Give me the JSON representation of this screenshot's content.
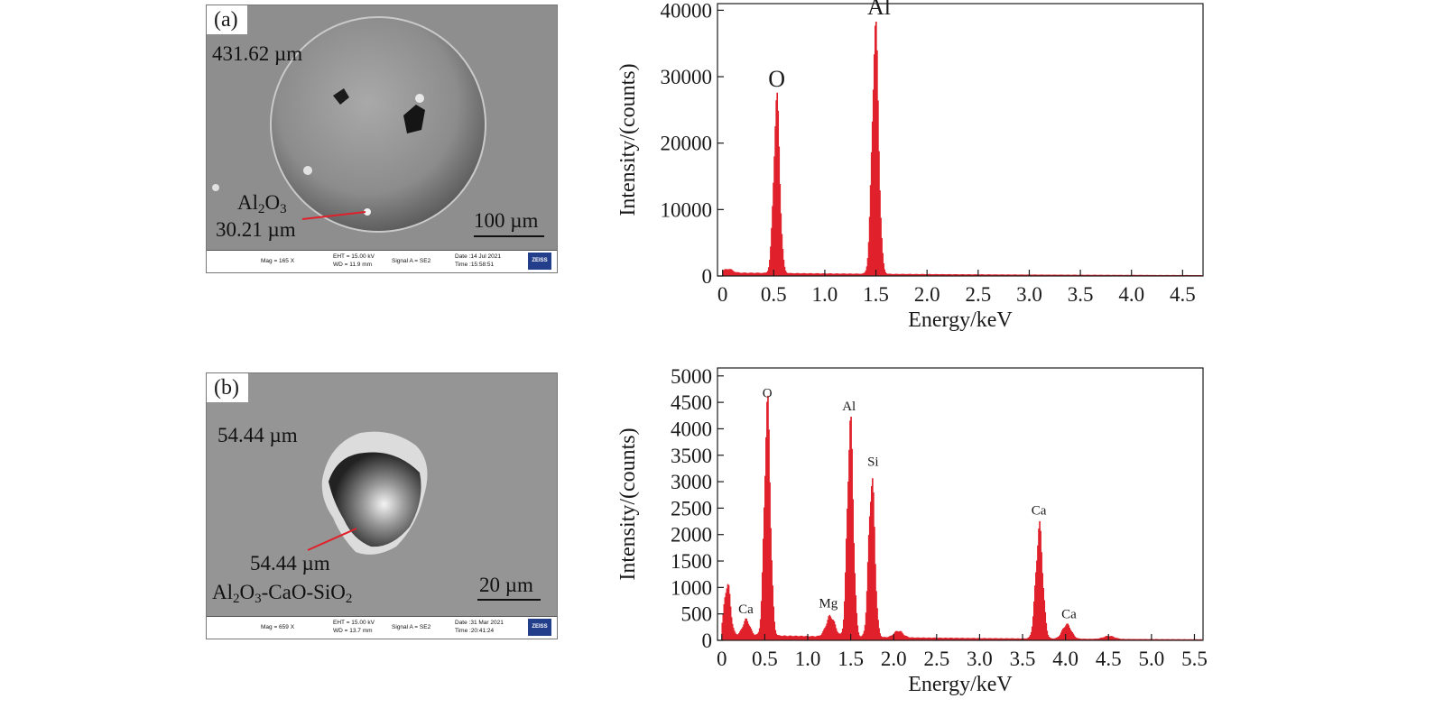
{
  "panels": [
    {
      "label": "(a)",
      "sem": {
        "diameter_label": "431.62 µm",
        "phase_main": "Al",
        "phase_sub1": "2",
        "phase_mid": "O",
        "phase_sub2": "3",
        "phase_tail": "",
        "size_label": "30.21 µm",
        "scale_bar": "100 µm",
        "info": {
          "mag": "Mag =   165 X",
          "eht": "EHT = 15.00 kV",
          "wd": "WD = 11.9 mm",
          "signal": "Signal A = SE2",
          "date": "Date :14 Jul 2021",
          "time": "Time :15:58:51",
          "logo": "ZEISS"
        }
      }
    },
    {
      "label": "(b)",
      "sem": {
        "diameter_label": "54.44 µm",
        "phase_main": "Al",
        "phase_sub1": "2",
        "phase_mid": "O",
        "phase_sub2": "3",
        "phase_tail": "-CaO-SiO",
        "phase_sub3": "2",
        "size_label": "54.44 µm",
        "scale_bar": "20 µm",
        "info": {
          "mag": "Mag =   659 X",
          "eht": "EHT = 15.00 kV",
          "wd": "WD = 13.7 mm",
          "signal": "Signal A = SE2",
          "date": "Date :31 Mar 2021",
          "time": "Time :20:41:24",
          "logo": "ZEISS"
        }
      }
    }
  ],
  "chart_data": [
    {
      "type": "area",
      "xlabel": "Energy/keV",
      "ylabel": "Intensity/(counts)",
      "xlim": [
        -0.05,
        4.7
      ],
      "ylim": [
        0,
        41000
      ],
      "xticks": [
        0,
        0.5,
        1.0,
        1.5,
        2.0,
        2.5,
        3.0,
        3.5,
        4.0,
        4.5
      ],
      "xtick_labels": [
        "0",
        "0.5",
        "1.0",
        "1.5",
        "2.0",
        "2.5",
        "3.0",
        "3.5",
        "4.0",
        "4.5"
      ],
      "yticks": [
        0,
        10000,
        20000,
        30000,
        40000
      ],
      "ytick_labels": [
        "0",
        "10000",
        "20000",
        "30000",
        "40000"
      ],
      "fill_color": "#e0202a",
      "baseline": 500,
      "peaks": [
        {
          "center": 0.525,
          "height": 26500,
          "width": 0.03
        },
        {
          "center": 1.49,
          "height": 37800,
          "width": 0.032
        },
        {
          "center": 0.05,
          "height": 600,
          "width": 0.04
        }
      ],
      "annotations": [
        {
          "text": "O",
          "x": 0.53,
          "y": 28500
        },
        {
          "text": "Al",
          "x": 1.53,
          "y": 39400
        }
      ]
    },
    {
      "type": "area",
      "xlabel": "Energy/keV",
      "ylabel": "Intensity/(counts)",
      "xlim": [
        -0.05,
        5.6
      ],
      "ylim": [
        0,
        5150
      ],
      "xticks": [
        0,
        0.5,
        1.0,
        1.5,
        2.0,
        2.5,
        3.0,
        3.5,
        4.0,
        4.5,
        5.0,
        5.5
      ],
      "xtick_labels": [
        "0",
        "0.5",
        "1.0",
        "1.5",
        "2.0",
        "2.5",
        "3.0",
        "3.5",
        "4.0",
        "4.5",
        "5.0",
        "5.5"
      ],
      "yticks": [
        0,
        500,
        1000,
        1500,
        2000,
        2500,
        3000,
        3500,
        4000,
        4500,
        5000
      ],
      "ytick_labels": [
        "0",
        "500",
        "1000",
        "1500",
        "2000",
        "2500",
        "3000",
        "3500",
        "4000",
        "4500",
        "5000"
      ],
      "fill_color": "#e0202a",
      "baseline": 110,
      "peaks": [
        {
          "center": 0.06,
          "height": 1000,
          "width": 0.035
        },
        {
          "center": 0.28,
          "height": 300,
          "width": 0.04
        },
        {
          "center": 0.525,
          "height": 4450,
          "width": 0.035
        },
        {
          "center": 1.26,
          "height": 400,
          "width": 0.05
        },
        {
          "center": 1.49,
          "height": 4150,
          "width": 0.035
        },
        {
          "center": 1.74,
          "height": 3100,
          "width": 0.035
        },
        {
          "center": 2.05,
          "height": 130,
          "width": 0.05
        },
        {
          "center": 3.69,
          "height": 2150,
          "width": 0.04
        },
        {
          "center": 4.01,
          "height": 280,
          "width": 0.05
        },
        {
          "center": 4.5,
          "height": 60,
          "width": 0.06
        }
      ],
      "annotations": [
        {
          "text": "O",
          "x": 0.53,
          "y": 4600
        },
        {
          "text": "Al",
          "x": 1.48,
          "y": 4350
        },
        {
          "text": "Si",
          "x": 1.76,
          "y": 3300
        },
        {
          "text": "Mg",
          "x": 1.24,
          "y": 620
        },
        {
          "text": "Ca",
          "x": 0.28,
          "y": 510
        },
        {
          "text": "Ca",
          "x": 3.69,
          "y": 2380
        },
        {
          "text": "Ca",
          "x": 4.04,
          "y": 420
        }
      ]
    }
  ]
}
